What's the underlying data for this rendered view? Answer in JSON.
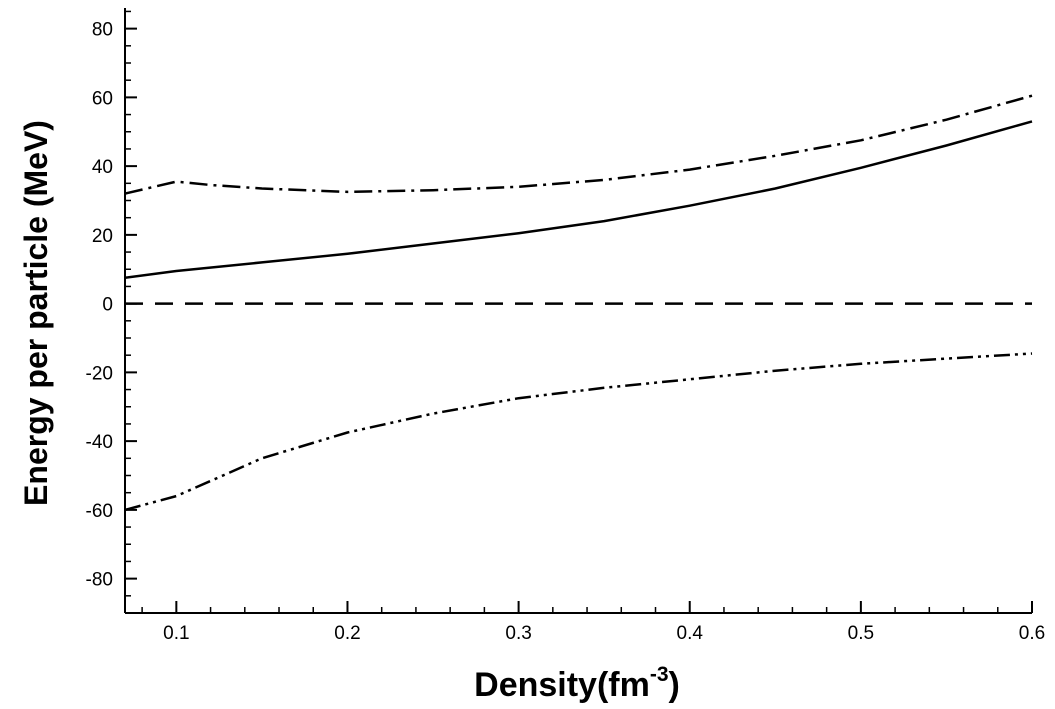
{
  "chart_data": {
    "type": "line",
    "title": "",
    "xlabel": "Density(fm",
    "xlabel_sup": "-3",
    "xlabel_close": ")",
    "ylabel": "Energy per particle (MeV)",
    "xlim": [
      0.07,
      0.6
    ],
    "ylim": [
      -90,
      86
    ],
    "x_ticks": [
      0.1,
      0.2,
      0.3,
      0.4,
      0.5,
      0.6
    ],
    "x_tick_labels": [
      "0.1",
      "0.2",
      "0.3",
      "0.4",
      "0.5",
      "0.6"
    ],
    "y_ticks": [
      -80,
      -60,
      -40,
      -20,
      0,
      20,
      40,
      60,
      80
    ],
    "y_tick_labels": [
      "-80",
      "-60",
      "-40",
      "-20",
      "0",
      "20",
      "40",
      "60",
      "80"
    ],
    "x_minor_step": 0.02,
    "y_minor_step": 5,
    "grid": false,
    "legend": "none",
    "colors": {
      "line": "#000000",
      "axis": "#000000",
      "background": "#ffffff"
    },
    "series": [
      {
        "style": "solid",
        "x": [
          0.07,
          0.1,
          0.15,
          0.2,
          0.25,
          0.3,
          0.35,
          0.4,
          0.45,
          0.5,
          0.55,
          0.6
        ],
        "y": [
          7.5,
          9.5,
          12,
          14.5,
          17.5,
          20.5,
          24,
          28.5,
          33.5,
          39.5,
          46,
          53
        ]
      },
      {
        "style": "dashed",
        "x": [
          0.07,
          0.6
        ],
        "y": [
          0,
          0
        ]
      },
      {
        "style": "dashdot",
        "x": [
          0.07,
          0.1,
          0.12,
          0.15,
          0.2,
          0.25,
          0.3,
          0.35,
          0.4,
          0.45,
          0.5,
          0.55,
          0.6
        ],
        "y": [
          32,
          35.5,
          34.5,
          33.5,
          32.5,
          33,
          34,
          36,
          39,
          43,
          47.5,
          53.5,
          60.5
        ]
      },
      {
        "style": "dashdotdot",
        "x": [
          0.07,
          0.1,
          0.15,
          0.2,
          0.25,
          0.3,
          0.35,
          0.4,
          0.45,
          0.5,
          0.55,
          0.6
        ],
        "y": [
          -60,
          -56,
          -45,
          -37.5,
          -32,
          -27.5,
          -24.5,
          -22,
          -19.5,
          -17.5,
          -16,
          -14.5
        ]
      }
    ]
  }
}
